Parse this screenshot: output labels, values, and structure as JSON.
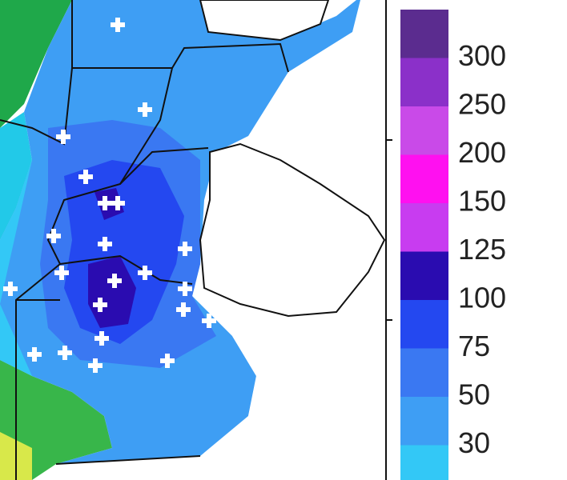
{
  "legend": {
    "levels": [
      300,
      250,
      200,
      150,
      125,
      100,
      75,
      50,
      30
    ],
    "colors": [
      "#5b2c8f",
      "#8b30c9",
      "#c94ae8",
      "#ff10f0",
      "#c83cf0",
      "#2a0cb0",
      "#2448f0",
      "#3a78f2",
      "#3e9ef4",
      "#33c8f6"
    ]
  }
}
